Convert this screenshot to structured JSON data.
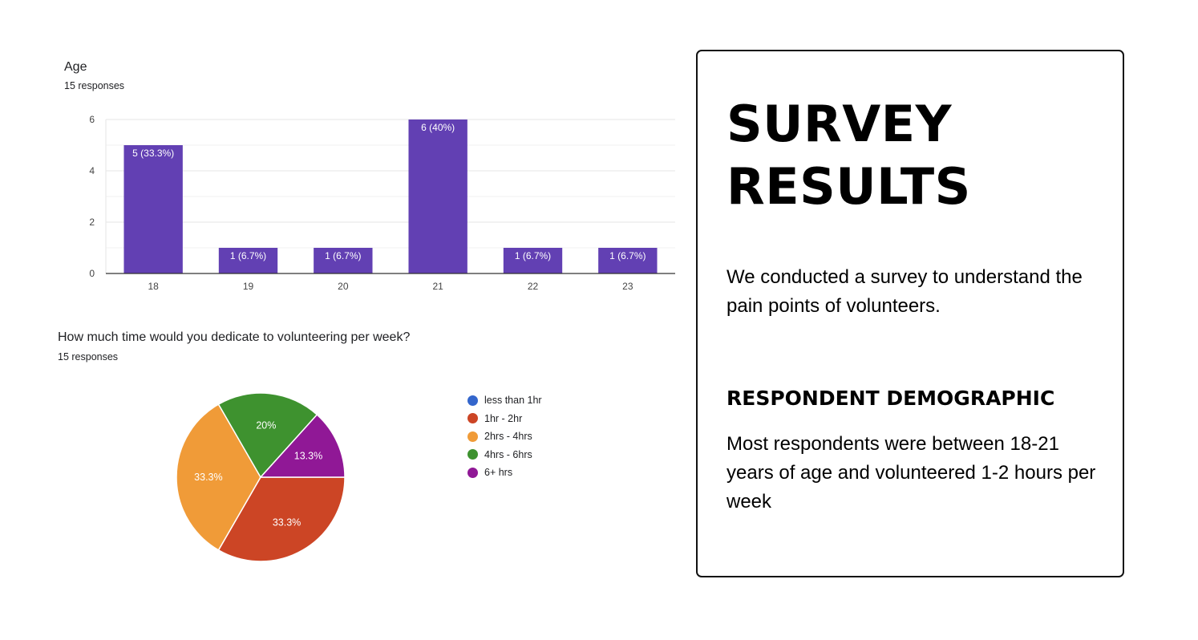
{
  "charts": {
    "age": {
      "title": "Age",
      "responses": "15 responses"
    },
    "time": {
      "title": "How much time would you dedicate to volunteering per week?",
      "responses": "15 responses"
    }
  },
  "chart_data": [
    {
      "type": "bar",
      "title": "Age",
      "subtitle": "15 responses",
      "categories": [
        "18",
        "19",
        "20",
        "21",
        "22",
        "23"
      ],
      "values": [
        5,
        1,
        1,
        6,
        1,
        1
      ],
      "labels": [
        "5 (33.3%)",
        "1 (6.7%)",
        "1 (6.7%)",
        "6 (40%)",
        "1 (6.7%)",
        "1 (6.7%)"
      ],
      "yticks": [
        0,
        2,
        4,
        6
      ],
      "ylim": [
        0,
        6
      ],
      "grid": true,
      "color": "#6240B3"
    },
    {
      "type": "pie",
      "title": "How much time would you dedicate to volunteering per week?",
      "subtitle": "15 responses",
      "legend_position": "right",
      "slices": [
        {
          "label": "less than 1hr",
          "value": 0,
          "pct_label": "",
          "color": "#3366CC"
        },
        {
          "label": "1hr - 2hr",
          "value": 33.3,
          "pct_label": "33.3%",
          "color": "#CC4525"
        },
        {
          "label": "2hrs - 4hrs",
          "value": 33.3,
          "pct_label": "33.3%",
          "color": "#F09B38"
        },
        {
          "label": "4hrs - 6hrs",
          "value": 20,
          "pct_label": "20%",
          "color": "#3E922F"
        },
        {
          "label": "6+ hrs",
          "value": 13.3,
          "pct_label": "13.3%",
          "color": "#901896"
        }
      ]
    }
  ],
  "card": {
    "title_line1": "SURVEY",
    "title_line2": "RESULTS",
    "intro": "We conducted a survey to understand the pain points of volunteers.",
    "heading": "RESPONDENT DEMOGRAPHIC",
    "body": "Most respondents were between 18-21 years of age and volunteered 1-2 hours per week"
  }
}
